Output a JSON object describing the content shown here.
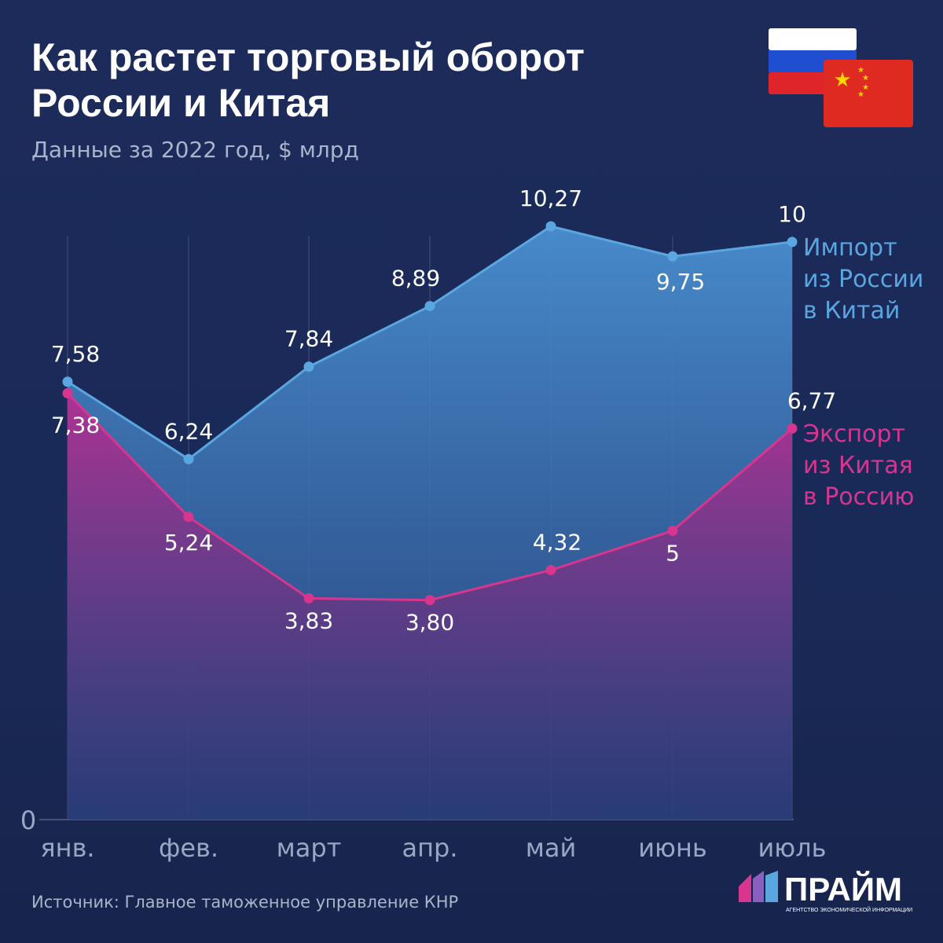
{
  "title_lines": [
    "Как растет торговый оборот",
    "России и Китая"
  ],
  "subtitle": "Данные за 2022 год, $ млрд",
  "source": "Источник: Главное таможенное управление КНР",
  "logo": {
    "name": "ПРАЙМ",
    "tagline": "АГЕНТСТВО ЭКОНОМИЧЕСКОЙ ИНФОРМАЦИИ"
  },
  "flags": [
    "russia-flag",
    "china-flag"
  ],
  "chart_data": {
    "type": "area",
    "categories": [
      "янв.",
      "фев.",
      "март",
      "апр.",
      "май",
      "июнь",
      "июль"
    ],
    "ylim": [
      0,
      10.27
    ],
    "y_ticks": [
      "0"
    ],
    "grid": "vertical",
    "series": [
      {
        "name_lines": [
          "Импорт",
          "из России",
          "в Китай"
        ],
        "color": "#5aa6e0",
        "values": [
          7.58,
          6.24,
          7.84,
          8.89,
          10.27,
          9.75,
          10
        ],
        "labels": [
          "7,58",
          "6,24",
          "7,84",
          "8,89",
          "10,27",
          "9,75",
          "10"
        ]
      },
      {
        "name_lines": [
          "Экспорт",
          "из Китая",
          "в Россию"
        ],
        "color": "#d8358f",
        "values": [
          7.38,
          5.24,
          3.83,
          3.8,
          4.32,
          5,
          6.77
        ],
        "labels": [
          "7,38",
          "5,24",
          "3,83",
          "3,80",
          "4,32",
          "5",
          "6,77"
        ]
      }
    ]
  }
}
